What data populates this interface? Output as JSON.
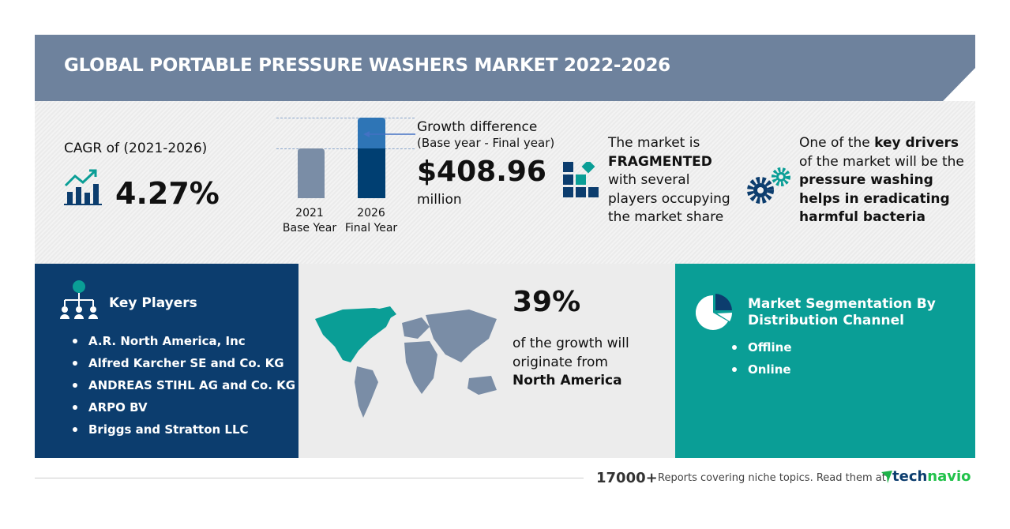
{
  "title": "GLOBAL PORTABLE PRESSURE WASHERS MARKET 2022-2026",
  "cagr": {
    "label": "CAGR of (2021-2026)",
    "value": "4.27%"
  },
  "bars": {
    "base_year": "2021",
    "base_label": "Base Year",
    "final_year": "2026",
    "final_label": "Final Year"
  },
  "growth": {
    "label": "Growth difference",
    "sub": "(Base year - Final year)",
    "value": "$408.96",
    "unit": "million"
  },
  "fragmented": {
    "l1": "The market is",
    "l2": "FRAGMENTED",
    "l3": "with several",
    "l4": "players occupying",
    "l5": "the market share"
  },
  "drivers": {
    "l1a": "One of the ",
    "l1b": "key drivers",
    "l2": "of the market will be the",
    "l3": "pressure washing",
    "l4": "helps in eradicating",
    "l5": "harmful bacteria"
  },
  "key_players": {
    "title": "Key Players",
    "items": [
      "A.R. North America, Inc",
      "Alfred Karcher SE and Co. KG",
      "ANDREAS STIHL AG and Co. KG",
      "ARPO BV",
      "Briggs and Stratton LLC"
    ]
  },
  "region": {
    "value": "39%",
    "l1": "of the growth will",
    "l2": "originate from",
    "l3": "North America"
  },
  "segmentation": {
    "title1": "Market Segmentation By",
    "title2": "Distribution Channel",
    "items": [
      "Offline",
      "Online"
    ]
  },
  "footer": {
    "count": "17000+",
    "text": "Reports covering niche topics. Read them at",
    "brand1": "tech",
    "brand2": "navio"
  },
  "colors": {
    "header": "#6e829d",
    "navy": "#0c3d6e",
    "teal": "#0a9e96",
    "bar_light": "#2e75b6"
  }
}
